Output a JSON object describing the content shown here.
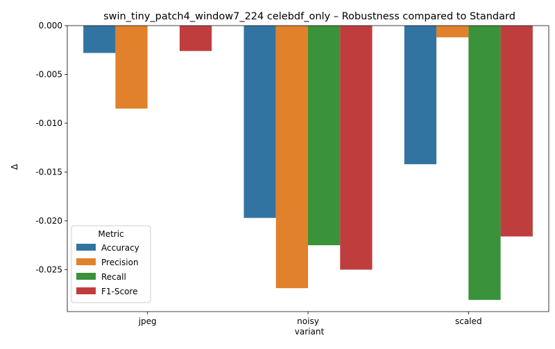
{
  "chart_data": {
    "type": "bar",
    "title": "swin_tiny_patch4_window7_224 celebdf_only – Robustness compared to Standard",
    "xlabel": "variant",
    "ylabel": "Δ",
    "categories": [
      "jpeg",
      "noisy",
      "scaled"
    ],
    "series": [
      {
        "name": "Accuracy",
        "color": "#3274a1",
        "values": [
          -0.0028,
          -0.0197,
          -0.0142
        ]
      },
      {
        "name": "Precision",
        "color": "#e1812c",
        "values": [
          -0.0085,
          -0.0269,
          -0.0012
        ]
      },
      {
        "name": "Recall",
        "color": "#3a923a",
        "values": [
          0.0,
          -0.0225,
          -0.0281
        ]
      },
      {
        "name": "F1-Score",
        "color": "#c03d3e",
        "values": [
          -0.0026,
          -0.025,
          -0.0216
        ]
      }
    ],
    "ylim": [
      -0.0293,
      0.0
    ],
    "yticks": [
      "0.000",
      "-0.005",
      "-0.010",
      "-0.015",
      "-0.020",
      "-0.025"
    ],
    "ytick_values": [
      0.0,
      -0.005,
      -0.01,
      -0.015,
      -0.02,
      -0.025
    ],
    "legend": {
      "title": "Metric",
      "placement": "lower-left"
    },
    "grid": false
  }
}
